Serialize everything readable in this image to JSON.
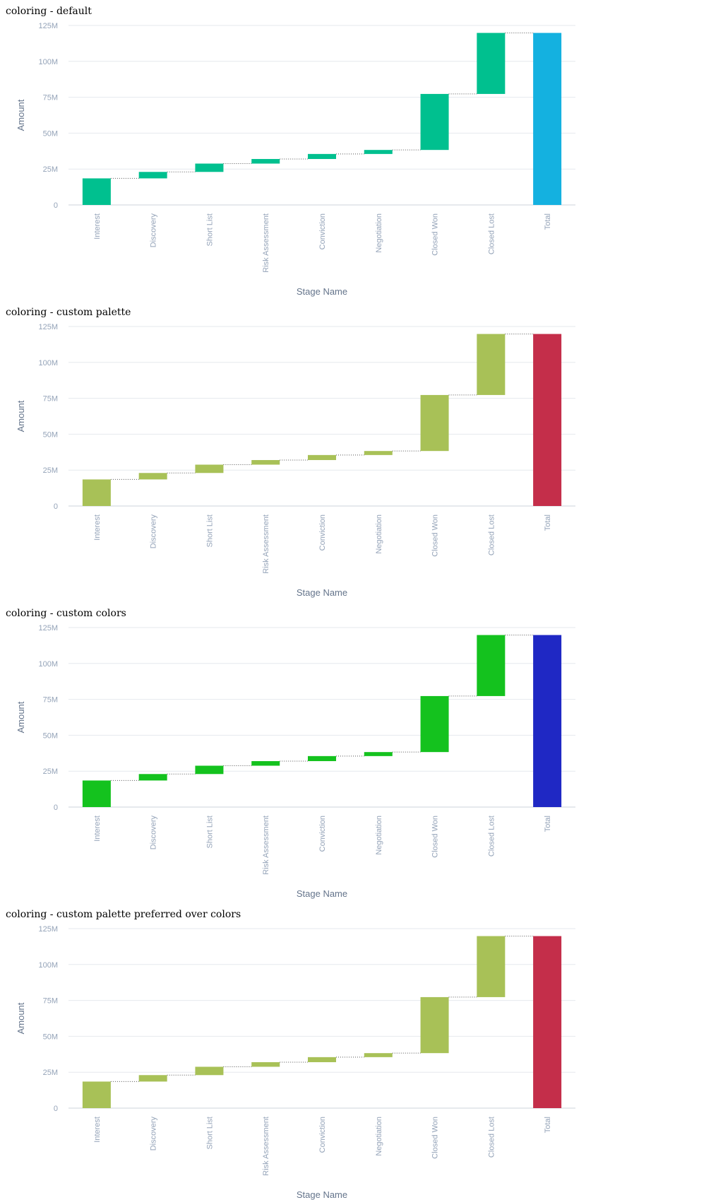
{
  "sections": [
    {
      "title": "coloring - default",
      "chart_data": {
        "type": "bar",
        "subtype": "waterfall",
        "title": "",
        "xlabel": "Stage Name",
        "ylabel": "Amount",
        "ylim": [
          0,
          125000000
        ],
        "yticks": [
          0,
          25000000,
          50000000,
          75000000,
          100000000,
          125000000
        ],
        "ytick_labels": [
          "0",
          "25M",
          "50M",
          "75M",
          "100M",
          "125M"
        ],
        "grid": true,
        "categories": [
          "Interest",
          "Discovery",
          "Short List",
          "Risk Assessment",
          "Conviction",
          "Negotiation",
          "Closed Won",
          "Closed Lost",
          "Total"
        ],
        "values": [
          18500000,
          4500000,
          5800000,
          3200000,
          3500000,
          2800000,
          39000000,
          42500000,
          119800000
        ],
        "total_category": "Total",
        "colors": {
          "increase": "#00c08f",
          "total": "#14b1e0"
        }
      }
    },
    {
      "title": "coloring - custom palette",
      "chart_data": {
        "type": "bar",
        "subtype": "waterfall",
        "title": "",
        "xlabel": "Stage Name",
        "ylabel": "Amount",
        "ylim": [
          0,
          125000000
        ],
        "yticks": [
          0,
          25000000,
          50000000,
          75000000,
          100000000,
          125000000
        ],
        "ytick_labels": [
          "0",
          "25M",
          "50M",
          "75M",
          "100M",
          "125M"
        ],
        "grid": true,
        "categories": [
          "Interest",
          "Discovery",
          "Short List",
          "Risk Assessment",
          "Conviction",
          "Negotiation",
          "Closed Won",
          "Closed Lost",
          "Total"
        ],
        "values": [
          18500000,
          4500000,
          5800000,
          3200000,
          3500000,
          2800000,
          39000000,
          42500000,
          119800000
        ],
        "total_category": "Total",
        "colors": {
          "increase": "#a8c157",
          "total": "#c42e4a"
        }
      }
    },
    {
      "title": "coloring - custom colors",
      "chart_data": {
        "type": "bar",
        "subtype": "waterfall",
        "title": "",
        "xlabel": "Stage Name",
        "ylabel": "Amount",
        "ylim": [
          0,
          125000000
        ],
        "yticks": [
          0,
          25000000,
          50000000,
          75000000,
          100000000,
          125000000
        ],
        "ytick_labels": [
          "0",
          "25M",
          "50M",
          "75M",
          "100M",
          "125M"
        ],
        "grid": true,
        "categories": [
          "Interest",
          "Discovery",
          "Short List",
          "Risk Assessment",
          "Conviction",
          "Negotiation",
          "Closed Won",
          "Closed Lost",
          "Total"
        ],
        "values": [
          18500000,
          4500000,
          5800000,
          3200000,
          3500000,
          2800000,
          39000000,
          42500000,
          119800000
        ],
        "total_category": "Total",
        "colors": {
          "increase": "#14c21e",
          "total": "#1f28c4"
        }
      }
    },
    {
      "title": "coloring - custom palette preferred over colors",
      "chart_data": {
        "type": "bar",
        "subtype": "waterfall",
        "title": "",
        "xlabel": "Stage Name",
        "ylabel": "Amount",
        "ylim": [
          0,
          125000000
        ],
        "yticks": [
          0,
          25000000,
          50000000,
          75000000,
          100000000,
          125000000
        ],
        "ytick_labels": [
          "0",
          "25M",
          "50M",
          "75M",
          "100M",
          "125M"
        ],
        "grid": true,
        "categories": [
          "Interest",
          "Discovery",
          "Short List",
          "Risk Assessment",
          "Conviction",
          "Negotiation",
          "Closed Won",
          "Closed Lost",
          "Total"
        ],
        "values": [
          18500000,
          4500000,
          5800000,
          3200000,
          3500000,
          2800000,
          39000000,
          42500000,
          119800000
        ],
        "total_category": "Total",
        "colors": {
          "increase": "#a8c157",
          "total": "#c42e4a"
        }
      }
    }
  ]
}
